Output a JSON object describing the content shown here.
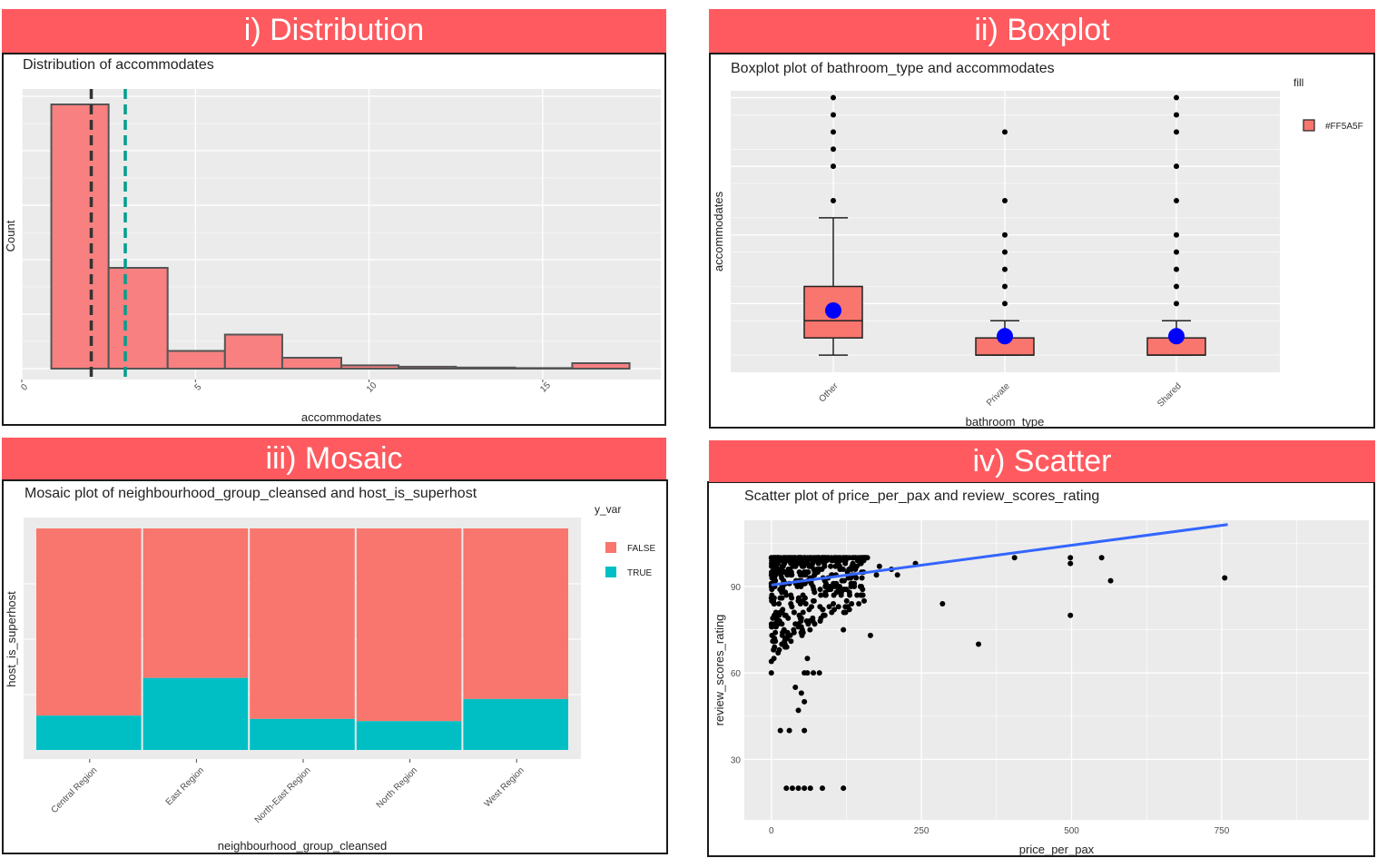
{
  "panels": {
    "p1": {
      "banner": "i) Distribution"
    },
    "p2": {
      "banner": "ii) Boxplot"
    },
    "p3": {
      "banner": "iii) Mosaic"
    },
    "p4": {
      "banner": "iv) Scatter"
    }
  },
  "colors": {
    "fill": "#F8766D",
    "bar_hist": "#f88080",
    "panel_bg": "#ebebeb",
    "teal": "#00BFC4",
    "mean_dot": "#0000ff",
    "line": "#3366ff",
    "banner": "#ff5a5f"
  },
  "chart_data": [
    {
      "type": "bar",
      "title": "Distribution of accommodates",
      "xlabel": "accommodates",
      "ylabel": "Count",
      "xlim": [
        0,
        18.4
      ],
      "x_ticks": [
        0,
        5,
        10,
        15
      ],
      "bins": [
        {
          "x0": 0.85,
          "x1": 2.5,
          "rel": 0.97
        },
        {
          "x0": 2.5,
          "x1": 4.2,
          "rel": 0.37
        },
        {
          "x0": 4.2,
          "x1": 5.85,
          "rel": 0.065
        },
        {
          "x0": 5.85,
          "x1": 7.5,
          "rel": 0.125
        },
        {
          "x0": 7.5,
          "x1": 9.2,
          "rel": 0.04
        },
        {
          "x0": 9.2,
          "x1": 10.85,
          "rel": 0.012
        },
        {
          "x0": 10.85,
          "x1": 12.5,
          "rel": 0.007
        },
        {
          "x0": 12.5,
          "x1": 14.2,
          "rel": 0.004
        },
        {
          "x0": 14.2,
          "x1": 15.85,
          "rel": 0.002
        },
        {
          "x0": 15.85,
          "x1": 17.5,
          "rel": 0.02
        }
      ],
      "vlines": [
        {
          "x": 2.0,
          "color": "#333333",
          "label": "median"
        },
        {
          "x": 2.98,
          "color": "#009E8E",
          "label": "mean"
        }
      ],
      "grid": true
    },
    {
      "type": "box",
      "title": "Boxplot plot of  bathroom_type  and  accommodates",
      "xlabel": "bathroom_type",
      "ylabel": "accommodates",
      "categories": [
        "Other",
        "Private",
        "Shared"
      ],
      "ylim": [
        0,
        16.4
      ],
      "boxes": [
        {
          "min": 1,
          "q1": 2,
          "median": 3,
          "q3": 5,
          "max": 9,
          "mean": 3.6,
          "outliers": [
            10,
            12,
            13,
            14,
            15,
            16
          ]
        },
        {
          "min": 1,
          "q1": 1,
          "median": 1,
          "q3": 2,
          "max": 3,
          "mean": 2.1,
          "outliers": [
            4,
            5,
            6,
            7,
            8,
            10,
            14
          ]
        },
        {
          "min": 1,
          "q1": 1,
          "median": 1,
          "q3": 2,
          "max": 3,
          "mean": 2.1,
          "outliers": [
            4,
            5,
            6,
            7,
            8,
            10,
            12,
            14,
            15,
            16
          ]
        }
      ],
      "legend": {
        "title": "fill",
        "entries": [
          "#FF5A5F"
        ],
        "position": "right"
      },
      "grid": true
    },
    {
      "type": "mosaic",
      "title": "Mosaic plot of  neighbourhood_group_cleansed  and  host_is_superhost",
      "xlabel": "neighbourhood_group_cleansed",
      "ylabel": "host_is_superhost",
      "categories": [
        "Central Region",
        "East Region",
        "North-East Region",
        "North Region",
        "West Region"
      ],
      "true_share": [
        0.155,
        0.325,
        0.14,
        0.13,
        0.23
      ],
      "legend": {
        "title": "y_var",
        "entries": [
          "FALSE",
          "TRUE"
        ],
        "position": "right"
      }
    },
    {
      "type": "scatter",
      "title": "Scatter plot of  price_per_pax  and  review_scores_rating",
      "xlabel": "price_per_pax",
      "ylabel": "review_scores_rating",
      "xlim": [
        -45,
        995
      ],
      "ylim": [
        9,
        113
      ],
      "x_ticks": [
        0,
        250,
        500,
        750
      ],
      "y_ticks": [
        30,
        60,
        90
      ],
      "points_sparse": [
        [
          240,
          98
        ],
        [
          285,
          84
        ],
        [
          345,
          70
        ],
        [
          405,
          100
        ],
        [
          498,
          100
        ],
        [
          498,
          98
        ],
        [
          498,
          80
        ],
        [
          550,
          100
        ],
        [
          565,
          92
        ],
        [
          755,
          93
        ],
        [
          165,
          73
        ],
        [
          210,
          94
        ],
        [
          200,
          96
        ],
        [
          180,
          97
        ],
        [
          175,
          94
        ],
        [
          130,
          88
        ],
        [
          130,
          82
        ],
        [
          140,
          96
        ],
        [
          150,
          90
        ],
        [
          120,
          75
        ],
        [
          0,
          60
        ],
        [
          15,
          40
        ],
        [
          30,
          40
        ],
        [
          45,
          47
        ],
        [
          55,
          50
        ],
        [
          55,
          40
        ],
        [
          55,
          60
        ],
        [
          60,
          60
        ],
        [
          70,
          60
        ],
        [
          80,
          60
        ],
        [
          25,
          20
        ],
        [
          35,
          20
        ],
        [
          45,
          20
        ],
        [
          55,
          20
        ],
        [
          65,
          20
        ],
        [
          85,
          20
        ],
        [
          120,
          20
        ],
        [
          40,
          55
        ],
        [
          50,
          53
        ],
        [
          60,
          65
        ]
      ],
      "cluster": {
        "x_range": [
          0,
          160
        ],
        "y_range": [
          62,
          100
        ]
      },
      "trend": {
        "x": [
          0,
          760
        ],
        "y": [
          90.5,
          111.5
        ]
      },
      "grid": true
    }
  ]
}
